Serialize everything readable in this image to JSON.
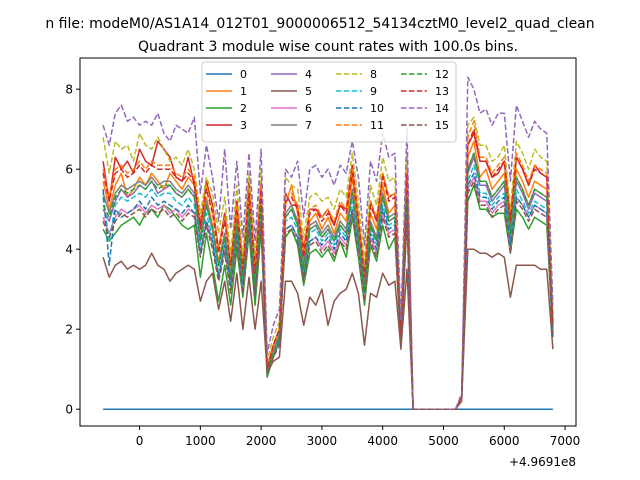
{
  "chart_data": {
    "type": "line",
    "suptitle": "n file: modeM0/AS1A14_012T01_9000006512_54134cztM0_level2_quad_clean",
    "title": "Quadrant 3 module wise count rates with 100.0s bins.",
    "xlabel": "",
    "ylabel": "",
    "x_offset_label": "+4.9691e8",
    "xlim": [
      -980,
      7180
    ],
    "ylim": [
      -0.42,
      8.78
    ],
    "xticks": [
      0,
      1000,
      2000,
      3000,
      4000,
      5000,
      6000,
      7000
    ],
    "yticks": [
      0,
      2,
      4,
      6,
      8
    ],
    "grid": false,
    "legend_position": "top-center",
    "legend_columns": 4,
    "x": [
      -600,
      -500,
      -400,
      -300,
      -200,
      -100,
      0,
      100,
      200,
      300,
      400,
      500,
      600,
      700,
      800,
      900,
      1000,
      1100,
      1200,
      1300,
      1400,
      1500,
      1600,
      1700,
      1800,
      1900,
      2000,
      2100,
      2200,
      2300,
      2400,
      2500,
      2600,
      2700,
      2800,
      2900,
      3000,
      3100,
      3200,
      3300,
      3400,
      3500,
      3600,
      3700,
      3800,
      3900,
      4000,
      4100,
      4200,
      4300,
      4400,
      4500,
      5200,
      5300,
      5400,
      5500,
      5600,
      5700,
      5800,
      5900,
      6000,
      6100,
      6200,
      6300,
      6400,
      6500,
      6600,
      6700,
      6800
    ],
    "series": [
      {
        "name": "0",
        "color": "#1f77b4",
        "style": "solid",
        "values": [
          0,
          0,
          0,
          0,
          0,
          0,
          0,
          0,
          0,
          0,
          0,
          0,
          0,
          0,
          0,
          0,
          0,
          0,
          0,
          0,
          0,
          0,
          0,
          0,
          0,
          0,
          0,
          0,
          0,
          0,
          0,
          0,
          0,
          0,
          0,
          0,
          0,
          0,
          0,
          0,
          0,
          0,
          0,
          0,
          0,
          0,
          0,
          0,
          0,
          0,
          0,
          0,
          0,
          0,
          0,
          0,
          0,
          0,
          0,
          0,
          0,
          0,
          0,
          0,
          0,
          0,
          0,
          0,
          0
        ]
      },
      {
        "name": "1",
        "color": "#ff7f0e",
        "style": "solid",
        "values": [
          5.7,
          5.0,
          5.6,
          5.9,
          5.3,
          5.5,
          5.8,
          5.6,
          5.9,
          5.7,
          5.5,
          5.9,
          5.7,
          5.5,
          5.8,
          5.6,
          4.5,
          5.3,
          4.6,
          3.7,
          4.4,
          3.4,
          4.8,
          3.3,
          5.3,
          3.2,
          5.4,
          1.0,
          1.5,
          1.9,
          5.1,
          5.6,
          4.9,
          3.7,
          4.7,
          4.9,
          4.5,
          4.8,
          4.4,
          4.9,
          4.7,
          5.8,
          4.5,
          3.2,
          4.9,
          4.5,
          5.6,
          4.9,
          5.1,
          1.8,
          5.6,
          0,
          0,
          0.3,
          6.3,
          6.7,
          5.8,
          6.0,
          5.5,
          5.7,
          5.9,
          4.6,
          6.0,
          5.7,
          5.3,
          5.7,
          5.6,
          5.5,
          2.1
        ]
      },
      {
        "name": "2",
        "color": "#2ca02c",
        "style": "solid",
        "values": [
          4.5,
          4.2,
          4.4,
          4.6,
          4.7,
          4.8,
          4.6,
          4.9,
          5.0,
          4.8,
          5.1,
          5.0,
          4.8,
          4.6,
          4.5,
          4.6,
          3.3,
          4.4,
          3.6,
          2.7,
          3.6,
          2.6,
          4.0,
          2.8,
          4.4,
          2.6,
          4.5,
          0.8,
          1.3,
          1.7,
          4.3,
          4.5,
          4.1,
          3.1,
          3.9,
          4.0,
          3.8,
          4.0,
          3.7,
          4.2,
          3.8,
          4.8,
          3.8,
          2.6,
          4.1,
          3.7,
          4.6,
          4.0,
          4.3,
          1.6,
          4.7,
          0,
          0,
          0.25,
          5.2,
          5.6,
          5.0,
          5.0,
          4.8,
          4.9,
          4.9,
          3.9,
          5.0,
          4.8,
          4.5,
          4.8,
          4.7,
          4.6,
          1.8
        ]
      },
      {
        "name": "3",
        "color": "#d62728",
        "style": "solid",
        "values": [
          6.2,
          5.2,
          6.3,
          6.0,
          6.2,
          5.9,
          6.5,
          6.2,
          6.1,
          6.7,
          6.5,
          6.3,
          5.8,
          5.7,
          6.3,
          5.6,
          4.5,
          5.7,
          5.1,
          4.0,
          4.9,
          3.6,
          5.2,
          3.5,
          5.8,
          3.5,
          5.7,
          1.0,
          1.6,
          2.0,
          5.4,
          5.1,
          5.1,
          4.0,
          5.0,
          5.0,
          4.8,
          5.0,
          4.6,
          5.1,
          5.0,
          6.1,
          4.8,
          3.4,
          5.2,
          4.7,
          5.9,
          5.3,
          5.4,
          1.9,
          6.0,
          0,
          0,
          0.3,
          6.6,
          6.9,
          6.2,
          6.2,
          5.8,
          5.9,
          6.2,
          4.7,
          6.3,
          6.0,
          5.6,
          6.1,
          5.9,
          5.8,
          2.2
        ]
      },
      {
        "name": "4",
        "color": "#9467bd",
        "style": "solid",
        "values": [
          5.0,
          4.7,
          5.2,
          5.5,
          5.3,
          5.4,
          5.6,
          5.5,
          5.7,
          5.4,
          5.5,
          5.6,
          5.4,
          5.3,
          5.5,
          5.3,
          4.2,
          5.1,
          4.5,
          3.6,
          4.3,
          3.3,
          4.6,
          3.3,
          5.0,
          3.1,
          5.1,
          0.9,
          1.4,
          1.8,
          4.8,
          5.0,
          4.6,
          3.5,
          4.5,
          4.6,
          4.3,
          4.5,
          4.2,
          4.6,
          4.4,
          5.4,
          4.3,
          3.0,
          4.6,
          4.2,
          5.3,
          4.7,
          4.8,
          1.7,
          5.3,
          0,
          0,
          0.3,
          5.9,
          6.3,
          5.6,
          5.6,
          5.2,
          5.4,
          5.6,
          4.3,
          5.7,
          5.4,
          5.0,
          5.4,
          5.3,
          5.2,
          2.0
        ]
      },
      {
        "name": "5",
        "color": "#8c564b",
        "style": "solid",
        "values": [
          3.8,
          3.3,
          3.6,
          3.7,
          3.5,
          3.6,
          3.5,
          3.6,
          3.9,
          3.6,
          3.5,
          3.2,
          3.4,
          3.5,
          3.6,
          3.5,
          2.7,
          3.2,
          3.4,
          2.5,
          3.2,
          2.2,
          3.4,
          2.0,
          3.3,
          2.0,
          3.2,
          0.9,
          1.2,
          1.3,
          3.2,
          3.2,
          2.9,
          2.1,
          2.8,
          2.6,
          3.0,
          2.1,
          2.7,
          2.9,
          3.0,
          3.4,
          2.9,
          1.6,
          2.9,
          2.8,
          3.4,
          3.1,
          3.2,
          1.5,
          3.5,
          0,
          0,
          0.2,
          4.0,
          4.0,
          3.9,
          3.9,
          3.8,
          3.9,
          3.8,
          2.8,
          3.6,
          3.6,
          3.6,
          3.6,
          3.5,
          3.5,
          1.5
        ]
      },
      {
        "name": "6",
        "color": "#e377c2",
        "style": "solid",
        "values": [
          4.8,
          4.4,
          4.8,
          5.0,
          4.9,
          5.0,
          5.1,
          4.9,
          5.1,
          5.0,
          5.1,
          4.9,
          5.0,
          4.8,
          5.0,
          4.9,
          3.9,
          4.7,
          4.1,
          3.3,
          4.0,
          3.0,
          4.3,
          3.0,
          4.6,
          2.9,
          4.7,
          0.9,
          1.3,
          1.7,
          4.5,
          4.6,
          4.3,
          3.3,
          4.2,
          4.3,
          4.0,
          4.2,
          3.9,
          4.3,
          4.1,
          5.0,
          4.0,
          2.8,
          4.3,
          3.9,
          4.9,
          4.4,
          4.5,
          1.6,
          4.9,
          0,
          0,
          0.25,
          5.5,
          5.8,
          5.2,
          5.2,
          4.9,
          5.1,
          5.2,
          4.0,
          5.3,
          5.1,
          4.8,
          5.1,
          5.0,
          4.9,
          1.9
        ]
      },
      {
        "name": "7",
        "color": "#7f7f7f",
        "style": "solid",
        "values": [
          5.4,
          4.9,
          5.4,
          5.6,
          5.5,
          5.6,
          5.7,
          5.6,
          5.8,
          5.6,
          5.7,
          5.7,
          5.5,
          5.4,
          5.6,
          5.4,
          4.3,
          5.2,
          4.5,
          3.6,
          4.4,
          3.3,
          4.7,
          3.3,
          5.1,
          3.2,
          5.2,
          1.0,
          1.4,
          1.9,
          4.9,
          5.1,
          4.7,
          3.6,
          4.6,
          4.7,
          4.4,
          4.6,
          4.3,
          4.7,
          4.5,
          5.5,
          4.4,
          3.1,
          4.7,
          4.3,
          5.4,
          4.8,
          4.9,
          1.7,
          5.4,
          0,
          0,
          0.3,
          6.0,
          6.4,
          5.7,
          5.7,
          5.3,
          5.5,
          5.7,
          4.4,
          5.8,
          5.5,
          5.1,
          5.5,
          5.4,
          5.3,
          2.0
        ]
      },
      {
        "name": "8",
        "color": "#bcbd22",
        "style": "dashed",
        "values": [
          6.8,
          5.9,
          6.7,
          6.5,
          6.6,
          6.2,
          6.9,
          6.6,
          6.5,
          6.8,
          6.5,
          6.2,
          6.3,
          6.1,
          6.5,
          6.0,
          4.9,
          5.8,
          5.4,
          4.4,
          5.3,
          3.9,
          5.6,
          3.8,
          5.9,
          3.8,
          6.0,
          1.2,
          1.8,
          2.2,
          5.8,
          5.6,
          5.5,
          4.3,
          5.3,
          5.4,
          5.2,
          5.3,
          5.0,
          5.5,
          5.3,
          6.4,
          5.2,
          3.7,
          5.6,
          5.1,
          6.3,
          5.7,
          5.8,
          2.0,
          6.4,
          0,
          0,
          0.35,
          7.1,
          7.3,
          6.6,
          6.6,
          6.2,
          6.3,
          6.6,
          5.0,
          6.7,
          6.4,
          6.0,
          6.5,
          6.3,
          6.2,
          2.3
        ]
      },
      {
        "name": "9",
        "color": "#17becf",
        "style": "dashed",
        "values": [
          5.3,
          4.2,
          5.1,
          5.3,
          5.2,
          5.3,
          5.4,
          5.3,
          5.5,
          5.3,
          5.4,
          5.4,
          5.2,
          5.1,
          5.3,
          5.1,
          4.1,
          4.9,
          4.3,
          3.4,
          4.2,
          3.2,
          4.5,
          3.2,
          4.8,
          3.0,
          4.9,
          0.9,
          1.4,
          1.8,
          4.7,
          4.8,
          4.5,
          3.4,
          4.4,
          4.5,
          4.2,
          4.4,
          4.1,
          4.5,
          4.3,
          5.2,
          4.2,
          3.0,
          4.5,
          4.1,
          5.1,
          4.6,
          4.7,
          1.7,
          5.1,
          0,
          0,
          0.3,
          5.7,
          6.1,
          5.4,
          5.4,
          5.1,
          5.3,
          5.4,
          4.2,
          5.5,
          5.2,
          4.9,
          5.2,
          5.1,
          5.0,
          1.9
        ]
      },
      {
        "name": "10",
        "color": "#1f77b4",
        "style": "dashed",
        "values": [
          5.5,
          3.6,
          5.0,
          4.8,
          4.9,
          5.0,
          5.2,
          5.0,
          5.3,
          5.1,
          5.2,
          5.1,
          5.0,
          4.9,
          5.1,
          4.9,
          3.9,
          4.7,
          4.2,
          3.3,
          4.1,
          3.1,
          4.4,
          3.1,
          4.7,
          2.9,
          4.7,
          0.9,
          1.3,
          1.7,
          4.5,
          4.6,
          4.3,
          3.3,
          4.2,
          4.3,
          4.1,
          4.3,
          4.0,
          4.4,
          4.2,
          5.0,
          4.1,
          2.9,
          4.4,
          4.0,
          5.0,
          4.5,
          4.6,
          1.6,
          5.0,
          0,
          0,
          0.3,
          5.6,
          5.9,
          5.3,
          5.3,
          5.0,
          5.2,
          5.3,
          4.1,
          5.3,
          5.1,
          4.8,
          5.1,
          5.0,
          4.9,
          1.8
        ]
      },
      {
        "name": "11",
        "color": "#ff7f0e",
        "style": "dashed",
        "values": [
          6.0,
          5.3,
          6.0,
          6.1,
          5.9,
          6.0,
          6.2,
          6.0,
          6.2,
          6.1,
          6.1,
          6.1,
          5.9,
          5.8,
          6.0,
          5.8,
          4.7,
          5.6,
          5.0,
          4.0,
          4.8,
          3.7,
          5.1,
          3.6,
          5.5,
          3.5,
          5.6,
          1.1,
          1.6,
          2.0,
          5.3,
          5.4,
          5.1,
          3.9,
          5.0,
          5.1,
          4.8,
          5.0,
          4.7,
          5.2,
          5.0,
          6.0,
          4.8,
          3.4,
          5.2,
          4.8,
          5.9,
          5.3,
          5.4,
          1.9,
          6.0,
          0,
          0,
          0.3,
          6.8,
          7.2,
          6.3,
          6.3,
          5.9,
          6.1,
          6.3,
          4.8,
          6.4,
          6.1,
          5.7,
          6.1,
          6.0,
          5.9,
          2.1
        ]
      },
      {
        "name": "12",
        "color": "#2ca02c",
        "style": "dashed",
        "values": [
          5.1,
          4.8,
          5.3,
          5.5,
          5.4,
          5.5,
          5.6,
          5.5,
          5.7,
          5.5,
          5.6,
          5.6,
          5.4,
          5.3,
          5.5,
          5.3,
          4.2,
          5.1,
          4.5,
          3.6,
          4.3,
          3.3,
          4.6,
          3.3,
          5.0,
          3.1,
          5.1,
          0.9,
          1.4,
          1.8,
          4.8,
          5.0,
          4.6,
          3.5,
          4.5,
          4.6,
          4.3,
          4.5,
          4.2,
          4.6,
          4.4,
          5.4,
          4.3,
          3.0,
          4.6,
          4.2,
          5.3,
          4.7,
          4.8,
          1.7,
          5.3,
          0,
          0,
          0.3,
          6.0,
          6.4,
          5.7,
          5.7,
          5.3,
          5.5,
          5.7,
          4.4,
          5.8,
          5.5,
          5.1,
          5.5,
          5.4,
          5.3,
          2.0
        ]
      },
      {
        "name": "13",
        "color": "#d62728",
        "style": "dashed",
        "values": [
          5.9,
          5.2,
          5.9,
          6.0,
          5.8,
          5.9,
          6.1,
          5.9,
          6.1,
          6.0,
          6.0,
          6.0,
          5.8,
          5.7,
          5.9,
          5.7,
          4.6,
          5.5,
          4.9,
          3.9,
          4.7,
          3.6,
          5.0,
          3.5,
          5.4,
          3.4,
          5.5,
          1.0,
          1.6,
          2.0,
          5.2,
          5.3,
          5.0,
          3.8,
          4.9,
          5.0,
          4.7,
          4.9,
          4.6,
          5.1,
          4.9,
          5.9,
          4.7,
          3.3,
          5.1,
          4.7,
          5.8,
          5.2,
          5.3,
          1.8,
          5.9,
          0,
          0,
          0.3,
          6.6,
          7.0,
          6.2,
          6.2,
          5.8,
          6.0,
          6.2,
          4.7,
          6.3,
          6.0,
          5.6,
          6.0,
          5.9,
          5.8,
          2.1
        ]
      },
      {
        "name": "14",
        "color": "#9467bd",
        "style": "dashed",
        "values": [
          7.1,
          6.6,
          7.4,
          7.6,
          7.2,
          7.3,
          7.1,
          7.2,
          7.1,
          7.4,
          6.9,
          6.7,
          7.1,
          7.0,
          6.9,
          7.3,
          5.4,
          6.6,
          5.8,
          4.7,
          6.5,
          4.5,
          6.2,
          4.3,
          6.4,
          4.2,
          6.5,
          1.4,
          2.1,
          2.5,
          6.0,
          5.8,
          6.2,
          4.8,
          6.0,
          6.1,
          5.8,
          6.0,
          5.6,
          6.1,
          5.9,
          6.7,
          5.8,
          4.1,
          6.2,
          5.7,
          6.9,
          6.3,
          6.4,
          2.2,
          7.0,
          0,
          0,
          0.4,
          8.3,
          8.0,
          7.4,
          7.5,
          7.1,
          7.4,
          7.4,
          5.7,
          7.6,
          7.2,
          6.8,
          7.2,
          7.0,
          6.9,
          2.6
        ]
      },
      {
        "name": "15",
        "color": "#8c564b",
        "style": "dashed",
        "values": [
          4.7,
          4.3,
          4.7,
          4.9,
          4.8,
          4.9,
          5.0,
          4.8,
          5.0,
          4.9,
          5.0,
          4.8,
          4.9,
          4.7,
          4.9,
          4.8,
          3.8,
          4.6,
          4.0,
          3.2,
          3.9,
          2.9,
          4.2,
          2.9,
          4.5,
          2.8,
          4.6,
          0.9,
          1.3,
          1.6,
          4.4,
          4.5,
          4.2,
          3.2,
          4.1,
          4.2,
          3.9,
          4.1,
          3.8,
          4.2,
          4.0,
          4.9,
          3.9,
          2.7,
          4.2,
          3.8,
          4.8,
          4.3,
          4.4,
          1.6,
          4.8,
          0,
          0,
          0.25,
          5.4,
          5.7,
          5.1,
          5.1,
          4.8,
          5.0,
          5.1,
          3.9,
          5.2,
          5.0,
          4.7,
          5.0,
          4.9,
          4.8,
          1.8
        ]
      }
    ]
  }
}
